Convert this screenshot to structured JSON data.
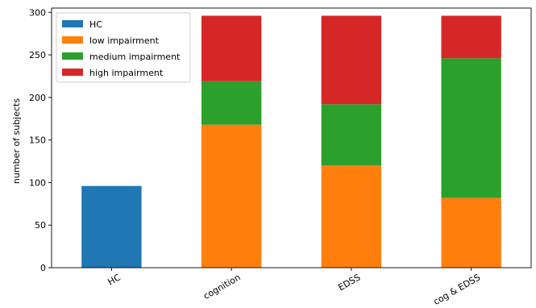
{
  "chart_data": {
    "type": "bar",
    "stacked": true,
    "categories": [
      "HC",
      "cognition",
      "EDSS",
      "cog & EDSS"
    ],
    "series": [
      {
        "name": "HC",
        "color": "#1f77b4",
        "values": [
          96,
          0,
          0,
          0
        ]
      },
      {
        "name": "low impairment",
        "color": "#ff7f0e",
        "values": [
          0,
          168,
          120,
          82
        ]
      },
      {
        "name": "medium impairment",
        "color": "#2ca02c",
        "values": [
          0,
          51,
          72,
          164
        ]
      },
      {
        "name": "high impairment",
        "color": "#d62728",
        "values": [
          0,
          77,
          104,
          50
        ]
      }
    ],
    "ylabel": "number of subjects",
    "xlabel": "",
    "ylim": [
      0,
      305
    ],
    "yticks": [
      0,
      50,
      100,
      150,
      200,
      250,
      300
    ],
    "xtick_rotation_deg": -30,
    "grid": false,
    "legend_position": "top-left"
  }
}
